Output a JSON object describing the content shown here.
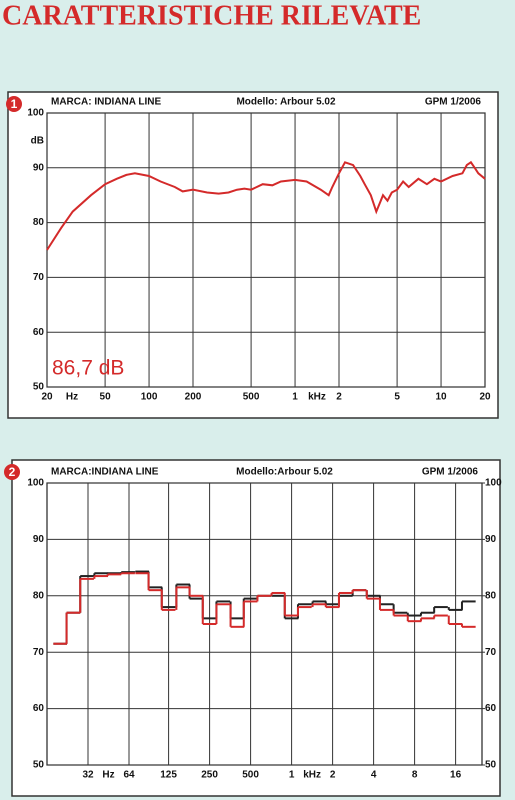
{
  "header": {
    "title": "CARATTERISTICHE RILEVATE"
  },
  "chart_data": [
    {
      "type": "line",
      "badge": "1",
      "brand": "MARCA: INDIANA LINE",
      "model": "Modello: Arbour 5.02",
      "source": "GPM 1/2006",
      "y_unit": "dB",
      "x_units": [
        "Hz",
        "kHz"
      ],
      "annotation": "86,7 dB",
      "log_x": true,
      "grid": true,
      "xlim": [
        20,
        20000
      ],
      "ylim": [
        50,
        100
      ],
      "xticks": [
        20,
        50,
        100,
        200,
        500,
        {
          "value": 1000,
          "label": "1"
        },
        {
          "value": 2000,
          "label": "2"
        },
        {
          "value": 5000,
          "label": "5"
        },
        {
          "value": 10000,
          "label": "10"
        },
        {
          "value": 20000,
          "label": "20"
        }
      ],
      "yticks": [
        50,
        60,
        70,
        80,
        90,
        100
      ],
      "color": "#d42a2a",
      "x": [
        20,
        25,
        30,
        40,
        50,
        60,
        70,
        80,
        100,
        120,
        150,
        170,
        200,
        250,
        300,
        350,
        400,
        450,
        500,
        600,
        700,
        800,
        1000,
        1200,
        1500,
        1700,
        1800,
        2000,
        2200,
        2500,
        2800,
        3000,
        3300,
        3600,
        3800,
        4000,
        4300,
        4600,
        5000,
        5500,
        6000,
        7000,
        8000,
        9000,
        10000,
        12000,
        14000,
        15000,
        16000,
        17000,
        18000,
        20000
      ],
      "values": [
        75,
        79,
        82,
        85,
        87,
        88,
        88.7,
        89,
        88.5,
        87.5,
        86.5,
        85.7,
        86,
        85.5,
        85.3,
        85.5,
        86,
        86.2,
        86,
        87,
        86.8,
        87.5,
        87.8,
        87.5,
        86,
        85,
        86.5,
        89,
        91,
        90.5,
        88.5,
        87,
        85,
        82,
        83.5,
        85,
        84,
        85.5,
        86,
        87.5,
        86.5,
        88,
        87,
        88,
        87.5,
        88.5,
        89,
        90.5,
        91,
        90,
        89,
        88
      ]
    },
    {
      "type": "step",
      "badge": "2",
      "brand": "MARCA:INDIANA LINE",
      "model": "Modello:Arbour 5.02",
      "source": "GPM 1/2006",
      "x_units": [
        "Hz",
        "kHz"
      ],
      "log_x": true,
      "grid": true,
      "xlim": [
        16,
        25000
      ],
      "ylim": [
        50,
        100
      ],
      "y2lim": [
        50,
        100
      ],
      "xticks": [
        32,
        64,
        125,
        250,
        500,
        {
          "value": 1000,
          "label": "1"
        },
        {
          "value": 2000,
          "label": "2"
        },
        {
          "value": 4000,
          "label": "4"
        },
        {
          "value": 8000,
          "label": "8"
        },
        {
          "value": 16000,
          "label": "16"
        }
      ],
      "yticks": [
        50,
        60,
        70,
        80,
        90,
        100
      ],
      "y2ticks": [
        50,
        60,
        70,
        80,
        90,
        100
      ],
      "x": [
        20,
        25,
        31.5,
        40,
        50,
        63,
        80,
        100,
        125,
        160,
        200,
        250,
        315,
        400,
        500,
        630,
        800,
        1000,
        1250,
        1600,
        2000,
        2500,
        3150,
        4000,
        5000,
        6300,
        8000,
        10000,
        12500,
        16000,
        20000
      ],
      "series": [
        {
          "color": "#222222",
          "values": [
            71.5,
            77,
            83.5,
            84,
            84,
            84.2,
            84.3,
            81.5,
            78,
            82,
            79.5,
            76,
            79,
            76,
            79.5,
            80,
            80,
            76,
            78.5,
            79,
            78.5,
            80,
            81,
            80,
            78.5,
            77,
            76.5,
            77,
            78,
            77.5,
            79
          ]
        },
        {
          "color": "#d42a2a",
          "values": [
            71.5,
            77,
            83,
            83.5,
            83.8,
            84,
            84,
            81,
            77.5,
            81.5,
            80,
            75,
            78.5,
            74.5,
            79,
            80,
            80.5,
            76.5,
            78,
            78.5,
            78,
            80.5,
            81,
            79.5,
            77.5,
            76.5,
            75.5,
            76,
            76.5,
            75,
            74.5
          ]
        }
      ]
    }
  ]
}
